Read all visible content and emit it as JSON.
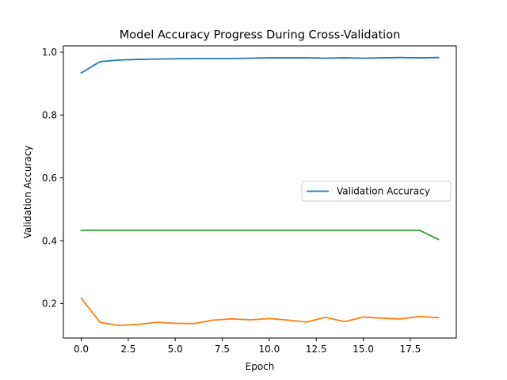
{
  "chart_data": {
    "type": "line",
    "title": "Model Accuracy Progress During Cross-Validation",
    "xlabel": "Epoch",
    "ylabel": "Validation Accuracy",
    "xlim": [
      -0.95,
      19.95
    ],
    "ylim": [
      0.09,
      1.02
    ],
    "xticks": [
      0.0,
      2.5,
      5.0,
      7.5,
      10.0,
      12.5,
      15.0,
      17.5
    ],
    "xtick_labels": [
      "0.0",
      "2.5",
      "5.0",
      "7.5",
      "10.0",
      "12.5",
      "15.0",
      "17.5"
    ],
    "yticks": [
      0.2,
      0.4,
      0.6,
      0.8,
      1.0
    ],
    "ytick_labels": [
      "0.2",
      "0.4",
      "0.6",
      "0.8",
      "1.0"
    ],
    "grid": false,
    "legend": {
      "position": "center-right",
      "entries": [
        "Validation Accuracy"
      ]
    },
    "x": [
      0,
      1,
      2,
      3,
      4,
      5,
      6,
      7,
      8,
      9,
      10,
      11,
      12,
      13,
      14,
      15,
      16,
      17,
      18,
      19
    ],
    "series": [
      {
        "name": "Validation Accuracy",
        "color": "#1f77b4",
        "values": [
          0.934,
          0.97,
          0.975,
          0.977,
          0.978,
          0.979,
          0.98,
          0.98,
          0.98,
          0.981,
          0.982,
          0.982,
          0.982,
          0.981,
          0.982,
          0.981,
          0.982,
          0.983,
          0.982,
          0.983
        ]
      },
      {
        "color": "#ff7f0e",
        "values": [
          0.217,
          0.14,
          0.13,
          0.133,
          0.14,
          0.137,
          0.136,
          0.147,
          0.151,
          0.148,
          0.152,
          0.147,
          0.141,
          0.156,
          0.142,
          0.157,
          0.153,
          0.151,
          0.159,
          0.155
        ]
      },
      {
        "color": "#2ca02c",
        "values": [
          0.433,
          0.433,
          0.433,
          0.433,
          0.433,
          0.433,
          0.433,
          0.433,
          0.433,
          0.433,
          0.433,
          0.433,
          0.433,
          0.433,
          0.433,
          0.433,
          0.433,
          0.433,
          0.433,
          0.404
        ]
      }
    ]
  }
}
